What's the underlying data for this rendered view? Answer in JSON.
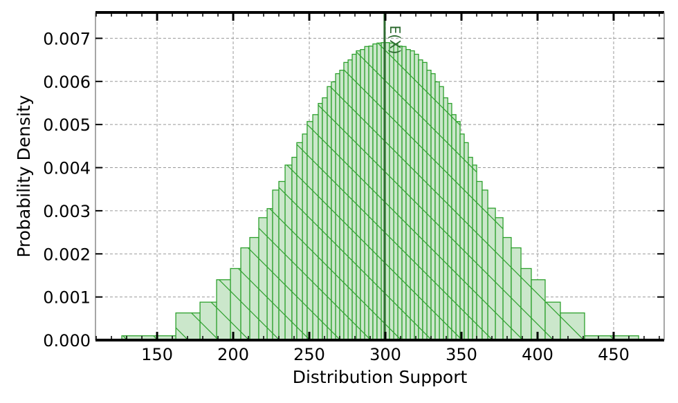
{
  "chart_data": {
    "type": "bar",
    "subtype": "histogram",
    "title": "",
    "xlabel": "Distribution Support",
    "ylabel": "Probability Density",
    "xlim": [
      109.5,
      483.2
    ],
    "ylim": [
      0,
      0.0076
    ],
    "xticks": [
      150,
      200,
      250,
      300,
      350,
      400,
      450
    ],
    "yticks": [
      0.0,
      0.001,
      0.002,
      0.003,
      0.004,
      0.005,
      0.006,
      0.007
    ],
    "ytick_labels": [
      "0.000",
      "0.001",
      "0.002",
      "0.003",
      "0.004",
      "0.005",
      "0.006",
      "0.007"
    ],
    "grid": true,
    "bin_edges": [
      126.8,
      130,
      162.3,
      178.2,
      189.1,
      198.2,
      205,
      210.9,
      216.8,
      222.3,
      225.9,
      230,
      234.1,
      238.6,
      241.8,
      245.5,
      248.6,
      252.3,
      255.9,
      258.6,
      261.8,
      264.5,
      267.3,
      270,
      272.7,
      275.5,
      278.2,
      280.9,
      283.6,
      286.4,
      289.1,
      291.8,
      294.5,
      297.3,
      300,
      302.7,
      305.5,
      308.2,
      310.9,
      313.6,
      316.4,
      319.1,
      321.8,
      324.5,
      327.3,
      330,
      332.7,
      335.5,
      338.2,
      341,
      343.6,
      346.4,
      349.1,
      351.8,
      354.5,
      357.3,
      360,
      363.6,
      367.3,
      372.3,
      377.3,
      382.7,
      389.1,
      395.9,
      405,
      415,
      430.9,
      466.4
    ],
    "values": [
      0.0001,
      0.0001,
      0.00063,
      0.00088,
      0.0014,
      0.00166,
      0.00214,
      0.00238,
      0.00284,
      0.00305,
      0.00348,
      0.00368,
      0.00406,
      0.00424,
      0.00458,
      0.00478,
      0.00507,
      0.00523,
      0.00549,
      0.00562,
      0.00588,
      0.00599,
      0.00618,
      0.00626,
      0.00644,
      0.0065,
      0.00663,
      0.00671,
      0.00674,
      0.00681,
      0.00682,
      0.00687,
      0.00689,
      0.0069,
      0.0069,
      0.00689,
      0.00687,
      0.00682,
      0.00681,
      0.00674,
      0.00671,
      0.00663,
      0.0065,
      0.00644,
      0.00626,
      0.00618,
      0.00599,
      0.00588,
      0.00562,
      0.00549,
      0.00523,
      0.00507,
      0.00478,
      0.00458,
      0.00424,
      0.00406,
      0.00368,
      0.00348,
      0.00306,
      0.00284,
      0.00238,
      0.00214,
      0.00166,
      0.0014,
      0.00088,
      0.00063,
      0.0001
    ],
    "bar_color": "#2ca02c",
    "bar_fill": "#cbe7cb",
    "hatch": "backslash",
    "annotations": [
      {
        "type": "vline",
        "x": 299.5,
        "label": "E(X)",
        "color": "#2e6b30"
      }
    ]
  }
}
